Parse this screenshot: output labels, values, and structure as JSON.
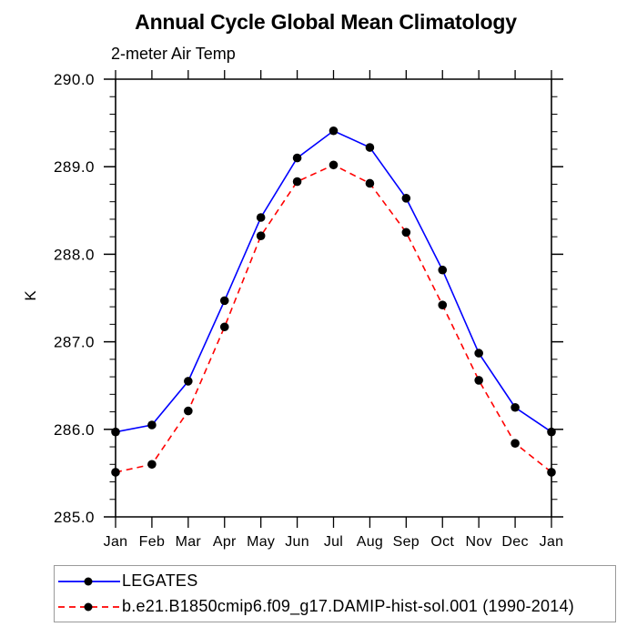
{
  "chart_data": {
    "type": "line",
    "title": "Annual Cycle Global Mean Climatology",
    "subtitle": "2-meter Air Temp",
    "ylabel": "K",
    "xlabel": "",
    "grid": false,
    "legend_position": "bottom-left-box",
    "ylim": [
      285.0,
      290.0
    ],
    "y_major_ticks": [
      285.0,
      286.0,
      287.0,
      288.0,
      289.0,
      290.0
    ],
    "y_minor_step": 0.2,
    "x_tick_labels": [
      "Jan",
      "Feb",
      "Mar",
      "Apr",
      "May",
      "Jun",
      "Jul",
      "Aug",
      "Sep",
      "Oct",
      "Nov",
      "Dec",
      "Jan"
    ],
    "marker": "filled-circle",
    "marker_color": "#000000",
    "axis_color": "#000000",
    "background_color": "#ffffff",
    "series": [
      {
        "name": "LEGATES",
        "color": "#0000ff",
        "line_style": "solid",
        "values": [
          285.97,
          286.05,
          286.55,
          287.47,
          288.42,
          289.1,
          289.41,
          289.22,
          288.64,
          287.82,
          286.87,
          286.25,
          285.97
        ]
      },
      {
        "name": "b.e21.B1850cmip6.f09_g17.DAMIP-hist-sol.001 (1990-2014)",
        "color": "#ff0000",
        "line_style": "dashed",
        "values": [
          285.51,
          285.6,
          286.21,
          287.17,
          288.21,
          288.83,
          289.02,
          288.81,
          288.25,
          287.42,
          286.56,
          285.84,
          285.51
        ]
      }
    ]
  }
}
